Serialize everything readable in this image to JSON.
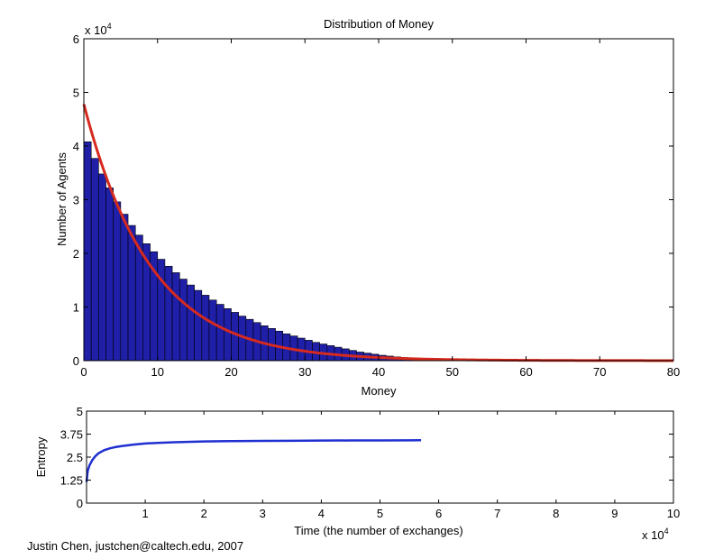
{
  "chart_data": [
    {
      "type": "bar",
      "title": "Distribution of Money",
      "xlabel": "Money",
      "ylabel": "Number of Agents",
      "exponent_label": "x 10",
      "exponent_power": "4",
      "xlim": [
        0,
        80
      ],
      "ylim": [
        0,
        6
      ],
      "xticks": [
        "0",
        "10",
        "20",
        "30",
        "40",
        "50",
        "60",
        "70",
        "80"
      ],
      "yticks": [
        "0",
        "1",
        "2",
        "3",
        "4",
        "5",
        "6"
      ],
      "bin_width": 1,
      "bar_color": "#1f1fa8",
      "curve_color": "#d62a1e",
      "values": [
        4.08,
        3.77,
        3.48,
        3.22,
        2.96,
        2.73,
        2.52,
        2.34,
        2.18,
        2.03,
        1.89,
        1.76,
        1.64,
        1.52,
        1.41,
        1.31,
        1.22,
        1.13,
        1.05,
        0.97,
        0.9,
        0.83,
        0.77,
        0.71,
        0.65,
        0.6,
        0.55,
        0.5,
        0.46,
        0.42,
        0.38,
        0.34,
        0.31,
        0.28,
        0.25,
        0.22,
        0.19,
        0.16,
        0.14,
        0.12,
        0.1,
        0.085,
        0.07,
        0.058,
        0.047,
        0.038,
        0.03,
        0.024,
        0.019,
        0.015,
        0.012,
        0.009,
        0.007,
        0.005,
        0.004,
        0.003,
        0.002,
        0.0015,
        0.001,
        0.0008
      ],
      "fit_curve": {
        "a": 4.78,
        "k": 0.11
      }
    },
    {
      "type": "line",
      "xlabel": "Time (the number of exchanges)",
      "ylabel": "Entropy",
      "exponent_label": "x 10",
      "exponent_power": "4",
      "xlim": [
        0,
        10
      ],
      "ylim": [
        0,
        5
      ],
      "xticks": [
        "1",
        "2",
        "3",
        "4",
        "5",
        "6",
        "7",
        "8",
        "9",
        "10"
      ],
      "yticks": [
        "0",
        "1.25",
        "2.5",
        "3.75",
        "5"
      ],
      "line_color": "#1f2fd0",
      "x": [
        0.0,
        0.02,
        0.05,
        0.1,
        0.15,
        0.2,
        0.3,
        0.4,
        0.5,
        0.6,
        0.8,
        1.0,
        1.25,
        1.5,
        2.0,
        2.5,
        3.0,
        3.5,
        4.0,
        4.5,
        5.0,
        5.5,
        5.7
      ],
      "y": [
        1.15,
        1.75,
        2.05,
        2.35,
        2.55,
        2.7,
        2.88,
        2.98,
        3.05,
        3.1,
        3.18,
        3.24,
        3.28,
        3.31,
        3.35,
        3.37,
        3.38,
        3.39,
        3.4,
        3.405,
        3.41,
        3.415,
        3.42
      ]
    }
  ],
  "credit": "Justin Chen, justchen@caltech.edu, 2007"
}
